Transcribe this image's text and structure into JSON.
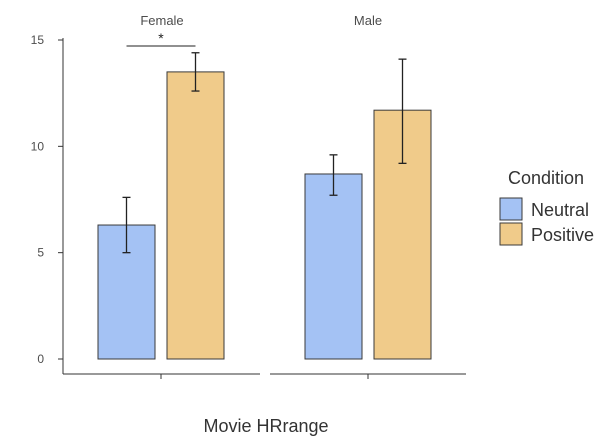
{
  "chart_data": {
    "type": "bar",
    "xlabel": "Movie  HRrange",
    "ylabel": "",
    "ylim": [
      0,
      15
    ],
    "yticks": [
      0,
      5,
      10,
      15
    ],
    "grid": false,
    "legend": {
      "title": "Condition",
      "position": "right"
    },
    "colors": {
      "Neutral": "#a4c2f4",
      "Positive": "#f0cb8a",
      "outline": "#3a3a3a"
    },
    "series": [
      {
        "name": "Neutral",
        "color": "#a4c2f4"
      },
      {
        "name": "Positive",
        "color": "#f0cb8a"
      }
    ],
    "facets": [
      {
        "title": "Female",
        "bars": [
          {
            "series": "Neutral",
            "value": 6.3,
            "err_low": 5.0,
            "err_high": 7.6
          },
          {
            "series": "Positive",
            "value": 13.5,
            "err_low": 12.6,
            "err_high": 14.4
          }
        ],
        "significance": "*"
      },
      {
        "title": "Male",
        "bars": [
          {
            "series": "Neutral",
            "value": 8.7,
            "err_low": 7.7,
            "err_high": 9.6
          },
          {
            "series": "Positive",
            "value": 11.7,
            "err_low": 9.2,
            "err_high": 14.1
          }
        ],
        "significance": ""
      }
    ]
  }
}
